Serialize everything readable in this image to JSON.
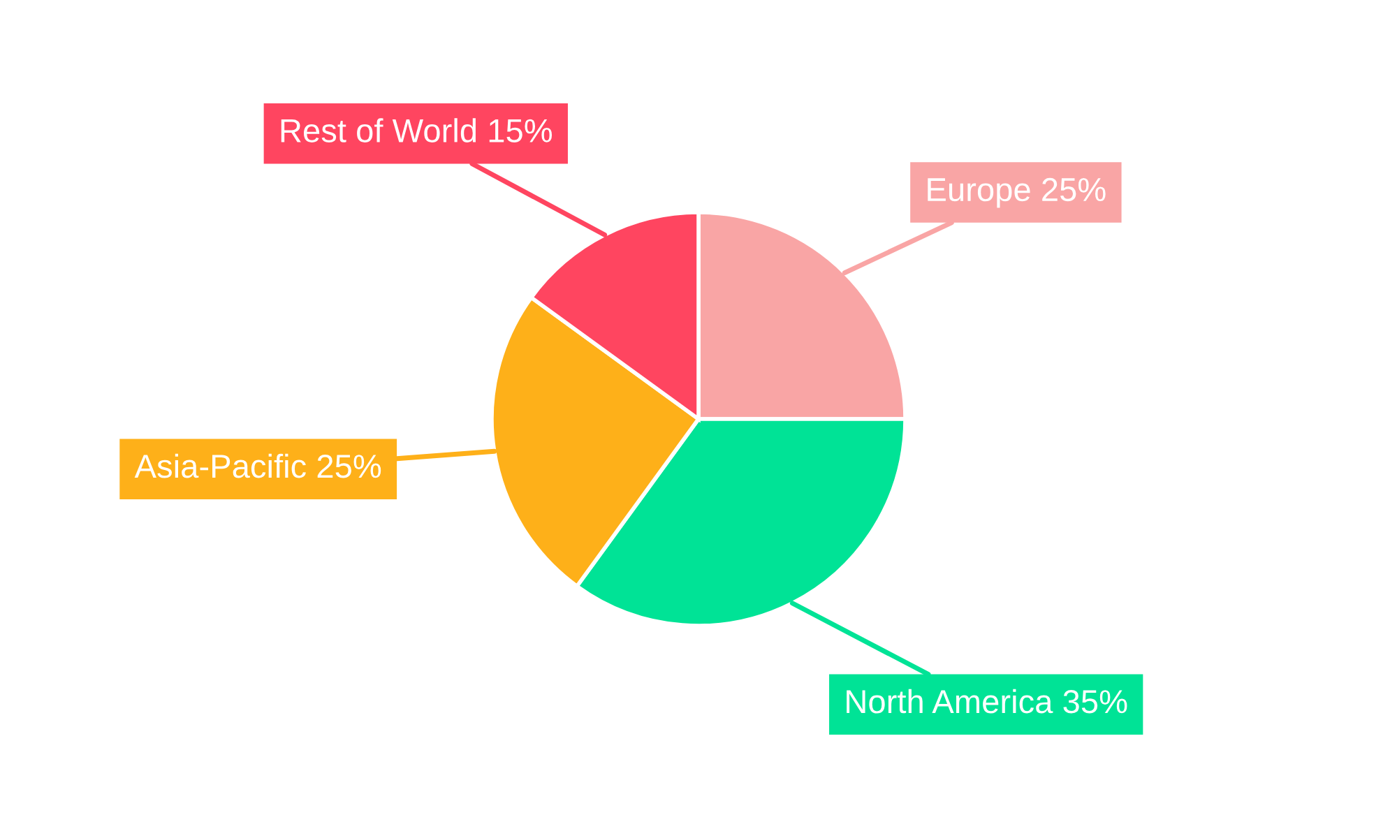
{
  "chart_data": {
    "type": "pie",
    "categories": [
      "Europe",
      "North America",
      "Asia-Pacific",
      "Rest of World"
    ],
    "values": [
      25,
      35,
      25,
      15
    ],
    "colors": [
      "#f9a5a5",
      "#00e396",
      "#feb019",
      "#ff4560"
    ],
    "value_labels": [
      "25%",
      "35%",
      "25%",
      "15%"
    ]
  }
}
